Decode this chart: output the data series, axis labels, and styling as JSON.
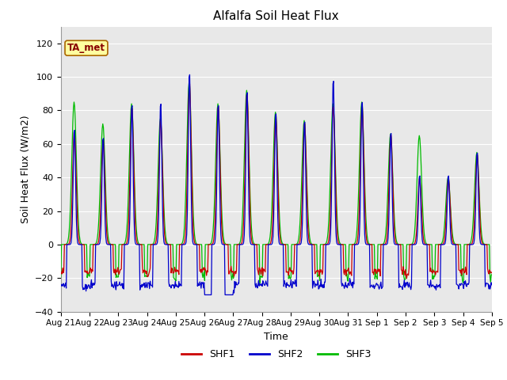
{
  "title": "Alfalfa Soil Heat Flux",
  "ylabel": "Soil Heat Flux (W/m2)",
  "xlabel": "Time",
  "xlabels": [
    "Aug 21",
    "Aug 22",
    "Aug 23",
    "Aug 24",
    "Aug 25",
    "Aug 26",
    "Aug 27",
    "Aug 28",
    "Aug 29",
    "Aug 30",
    "Aug 31",
    "Sep 1",
    "Sep 2",
    "Sep 3",
    "Sep 4",
    "Sep 5"
  ],
  "ylim": [
    -40,
    130
  ],
  "yticks": [
    -40,
    -20,
    0,
    20,
    40,
    60,
    80,
    100,
    120
  ],
  "shf1_color": "#cc0000",
  "shf2_color": "#0000cc",
  "shf3_color": "#00bb00",
  "bg_color": "#e8e8e8",
  "annotation_text": "TA_met",
  "annotation_bg": "#ffffa0",
  "annotation_border": "#aa6600",
  "legend_labels": [
    "SHF1",
    "SHF2",
    "SHF3"
  ],
  "n_days": 15,
  "n_per_day": 48,
  "peak_mags_shf2": [
    70,
    65,
    85,
    86,
    104,
    85,
    93,
    80,
    75,
    100,
    87,
    68,
    42,
    42,
    56
  ],
  "peak_mags_shf1": [
    68,
    63,
    82,
    75,
    97,
    83,
    91,
    78,
    73,
    83,
    84,
    66,
    40,
    40,
    54
  ],
  "peak_mags_shf3": [
    85,
    72,
    84,
    75,
    97,
    84,
    92,
    79,
    74,
    84,
    85,
    66,
    65,
    40,
    55
  ],
  "trough_shf1": -16,
  "trough_shf2": -24,
  "trough_shf3": -19
}
